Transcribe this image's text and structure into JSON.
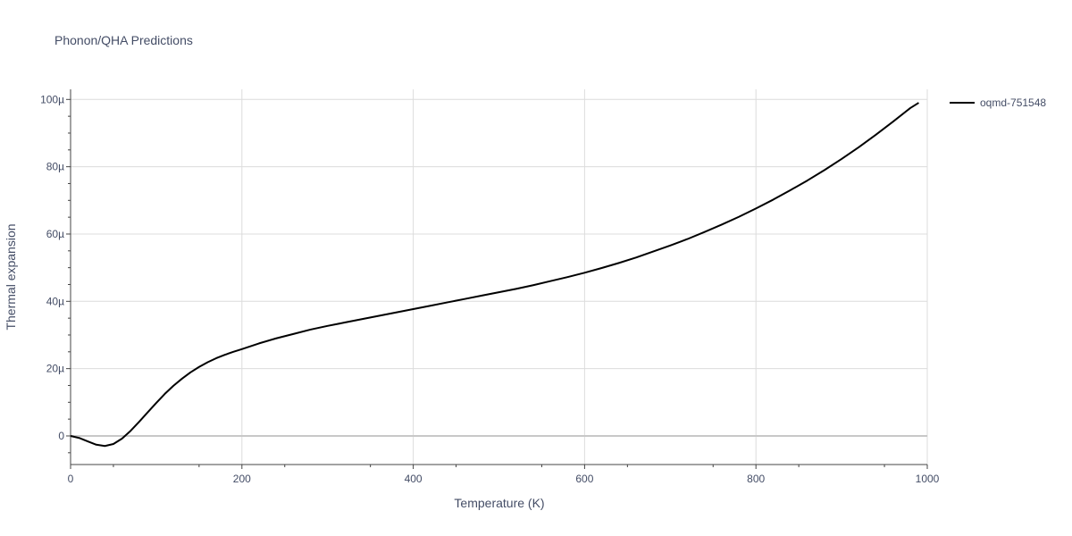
{
  "chart_data": {
    "type": "line",
    "title": "Phonon/QHA Predictions",
    "xlabel": "Temperature (K)",
    "ylabel": "Thermal expansion",
    "xlim": [
      0,
      1000
    ],
    "ylim": [
      -8.5,
      103
    ],
    "x_ticks": [
      0,
      200,
      400,
      600,
      800,
      1000
    ],
    "x_tick_labels": [
      "0",
      "200",
      "400",
      "600",
      "800",
      "1000"
    ],
    "y_ticks": [
      0,
      20,
      40,
      60,
      80,
      100
    ],
    "y_tick_labels": [
      "0",
      "20µ",
      "40µ",
      "60µ",
      "80µ",
      "100µ"
    ],
    "grid": true,
    "legend_position": "top-right",
    "series": [
      {
        "name": "oqmd-751548",
        "color": "#000000",
        "x": [
          0,
          10,
          20,
          30,
          40,
          50,
          60,
          70,
          80,
          90,
          100,
          110,
          120,
          130,
          140,
          150,
          160,
          170,
          180,
          190,
          200,
          220,
          240,
          260,
          280,
          300,
          320,
          340,
          360,
          380,
          400,
          420,
          440,
          460,
          480,
          500,
          520,
          540,
          560,
          580,
          600,
          620,
          640,
          660,
          680,
          700,
          720,
          740,
          760,
          780,
          800,
          820,
          840,
          860,
          880,
          900,
          920,
          940,
          960,
          980,
          990
        ],
        "y": [
          0,
          -0.6,
          -1.6,
          -2.6,
          -3.0,
          -2.4,
          -0.8,
          1.5,
          4.2,
          7.0,
          9.8,
          12.5,
          14.9,
          17.0,
          18.9,
          20.5,
          21.9,
          23.1,
          24.1,
          25.0,
          25.8,
          27.5,
          29.0,
          30.3,
          31.6,
          32.7,
          33.7,
          34.7,
          35.7,
          36.7,
          37.7,
          38.7,
          39.7,
          40.7,
          41.7,
          42.7,
          43.7,
          44.8,
          46.0,
          47.2,
          48.5,
          49.9,
          51.4,
          53.0,
          54.8,
          56.6,
          58.5,
          60.6,
          62.8,
          65.1,
          67.6,
          70.2,
          73.0,
          75.9,
          79.0,
          82.3,
          85.8,
          89.5,
          93.4,
          97.4,
          99.0
        ]
      }
    ]
  }
}
